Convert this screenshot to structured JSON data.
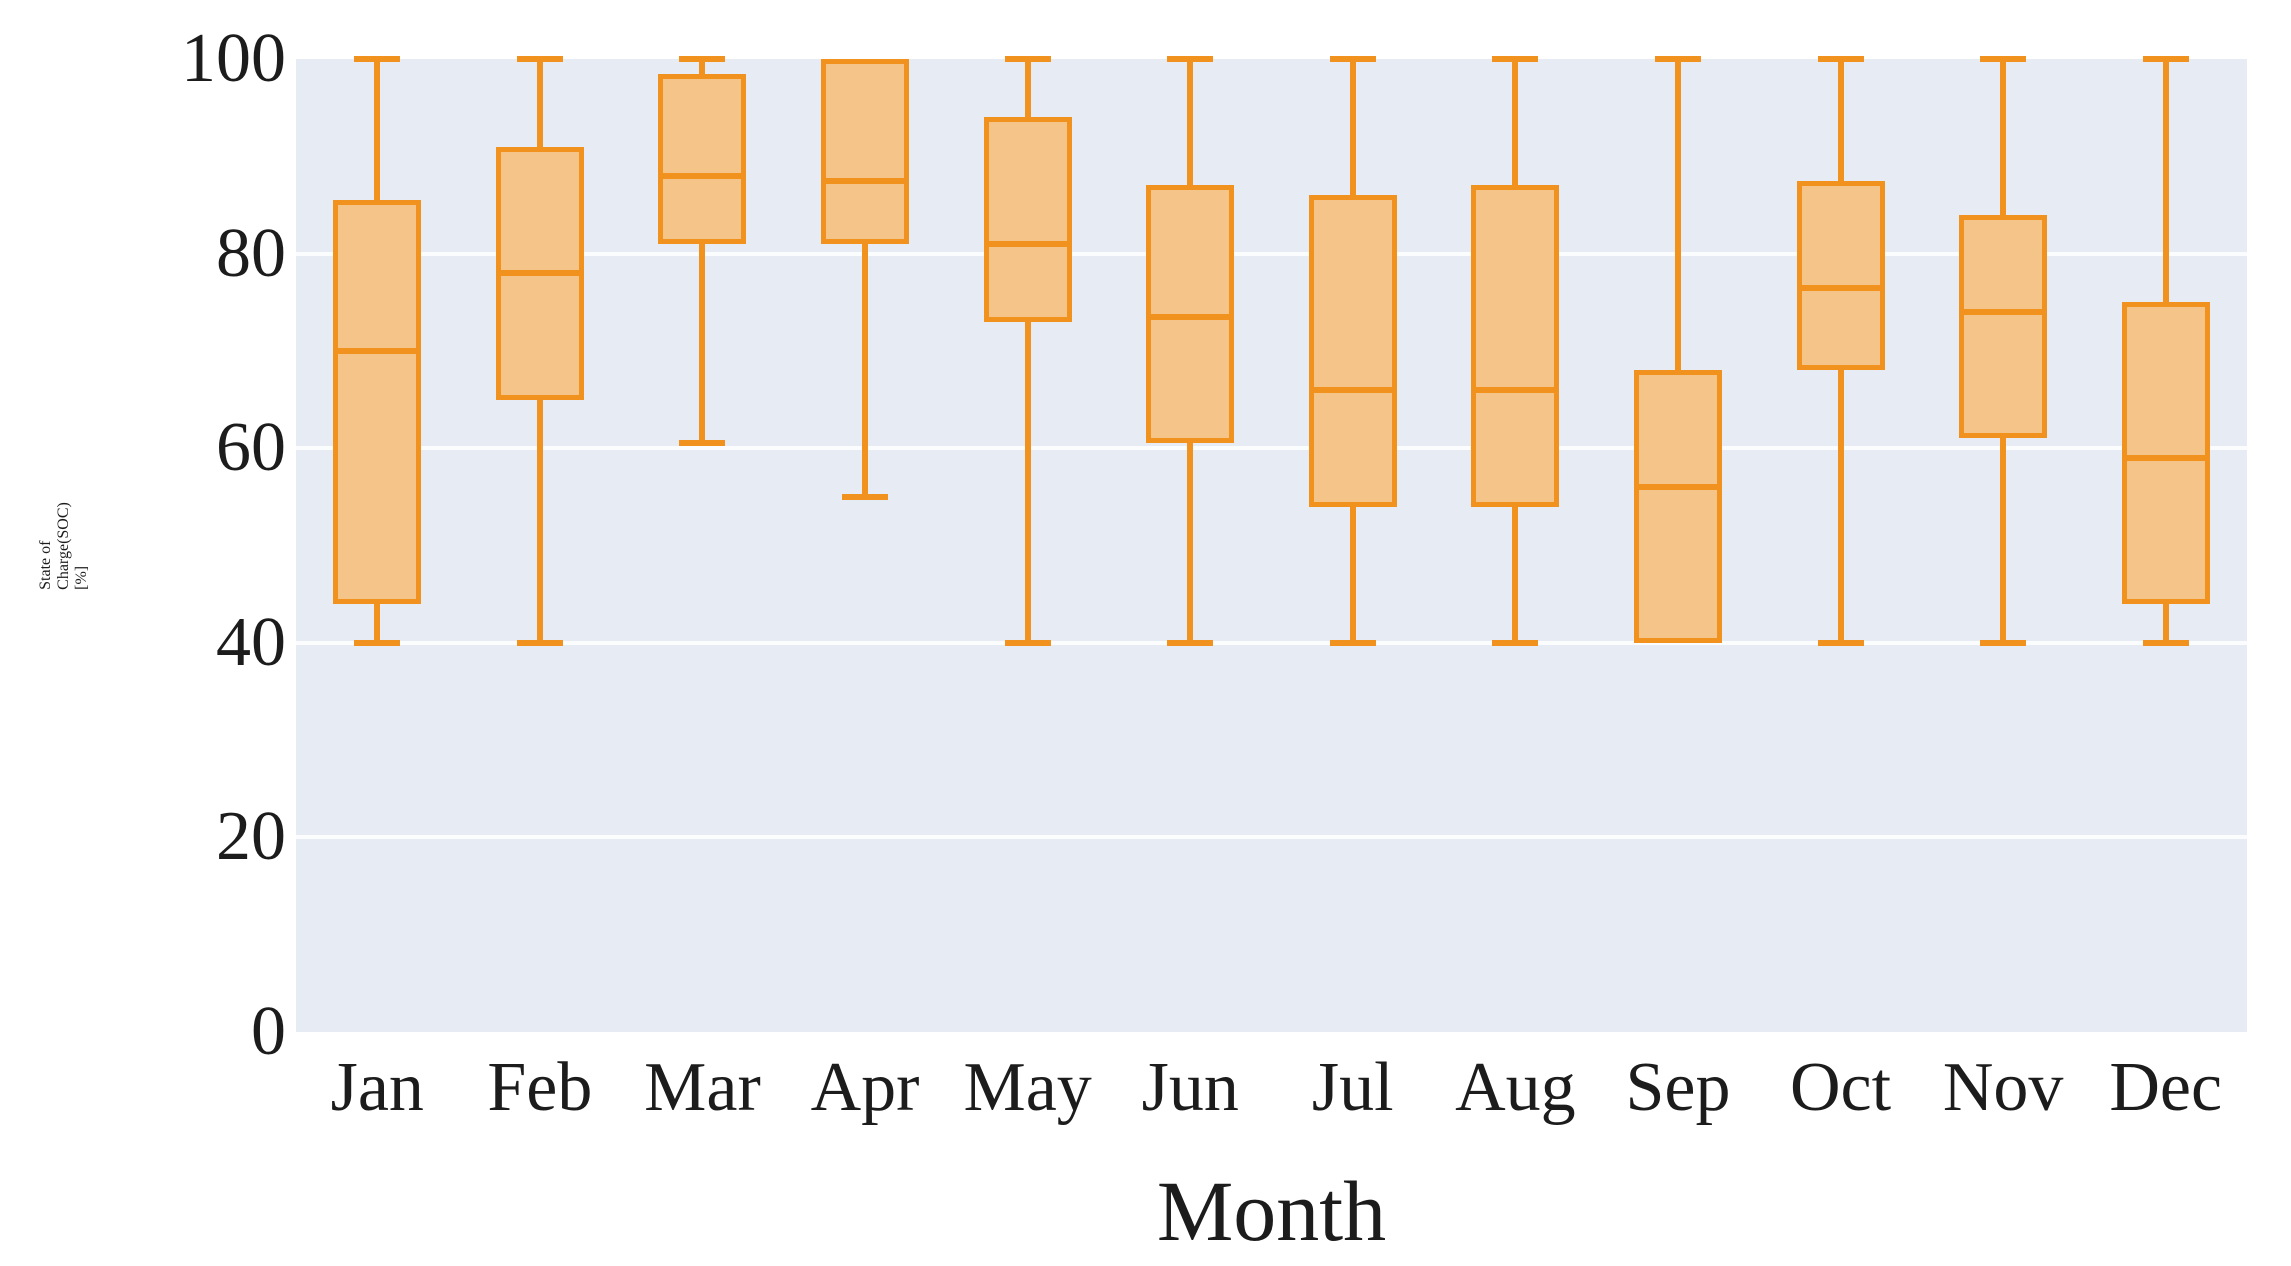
{
  "chart_data": {
    "type": "boxplot",
    "title": "",
    "xlabel": "Month",
    "ylabel": "State of Charge(SOC)[%]",
    "ylim": [
      0,
      100
    ],
    "yticks": [
      0,
      20,
      40,
      60,
      80,
      100
    ],
    "grid": "horizontal-only",
    "legend": "none",
    "categories": [
      "Jan",
      "Feb",
      "Mar",
      "Apr",
      "May",
      "Jun",
      "Jul",
      "Aug",
      "Sep",
      "Oct",
      "Nov",
      "Dec"
    ],
    "series": [
      {
        "name": "State of Charge (SOC)",
        "boxes": [
          {
            "month": "Jan",
            "whisker_low": 40,
            "q1": 44,
            "median": 70,
            "q3": 85.5,
            "whisker_high": 100
          },
          {
            "month": "Feb",
            "whisker_low": 40,
            "q1": 65,
            "median": 78,
            "q3": 91,
            "whisker_high": 100
          },
          {
            "month": "Mar",
            "whisker_low": 60.5,
            "q1": 81,
            "median": 88,
            "q3": 98.5,
            "whisker_high": 100
          },
          {
            "month": "Apr",
            "whisker_low": 55,
            "q1": 81,
            "median": 87.5,
            "q3": 100,
            "whisker_high": 100
          },
          {
            "month": "May",
            "whisker_low": 40,
            "q1": 73,
            "median": 81,
            "q3": 94,
            "whisker_high": 100
          },
          {
            "month": "Jun",
            "whisker_low": 40,
            "q1": 60.5,
            "median": 73.5,
            "q3": 87,
            "whisker_high": 100
          },
          {
            "month": "Jul",
            "whisker_low": 40,
            "q1": 54,
            "median": 66,
            "q3": 86,
            "whisker_high": 100
          },
          {
            "month": "Aug",
            "whisker_low": 40,
            "q1": 54,
            "median": 66,
            "q3": 87,
            "whisker_high": 100
          },
          {
            "month": "Sep",
            "whisker_low": 40,
            "q1": 40,
            "median": 56,
            "q3": 68,
            "whisker_high": 100
          },
          {
            "month": "Oct",
            "whisker_low": 40,
            "q1": 68,
            "median": 76.5,
            "q3": 87.5,
            "whisker_high": 100
          },
          {
            "month": "Nov",
            "whisker_low": 40,
            "q1": 61,
            "median": 74,
            "q3": 84,
            "whisker_high": 100
          },
          {
            "month": "Dec",
            "whisker_low": 40,
            "q1": 44,
            "median": 59,
            "q3": 75,
            "whisker_high": 100
          }
        ]
      }
    ],
    "colors": {
      "box_border": "#F2921E",
      "box_fill": "#F4C489",
      "plot_background": "#E7EBF4",
      "gridline": "#FBFCFE",
      "text": "#1C1C1C"
    }
  },
  "x_axis": {
    "title": "Month",
    "tick_labels": [
      "Jan",
      "Feb",
      "Mar",
      "Apr",
      "May",
      "Jun",
      "Jul",
      "Aug",
      "Sep",
      "Oct",
      "Nov",
      "Dec"
    ]
  },
  "y_axis": {
    "title": "State of Charge(SOC)[%]",
    "tick_labels": [
      "0",
      "20",
      "40",
      "60",
      "80",
      "100"
    ]
  }
}
